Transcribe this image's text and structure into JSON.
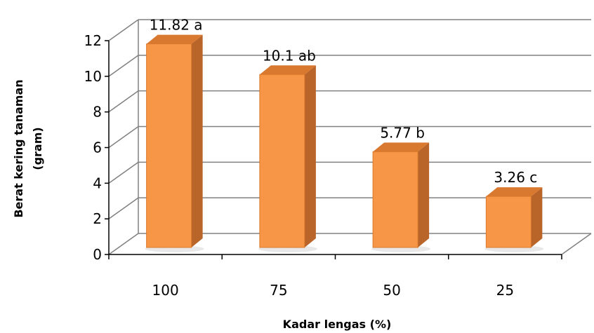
{
  "chart_data": {
    "type": "bar",
    "categories": [
      "100",
      "75",
      "50",
      "25"
    ],
    "values": [
      11.82,
      10.1,
      5.77,
      3.26
    ],
    "data_labels": [
      "11.82 a",
      "10.1 ab",
      "5.77 b",
      "3.26 c"
    ],
    "xlabel": "Kadar lengas (%)",
    "ylabel_lines": [
      "Berat kering tanaman",
      "(gram)"
    ],
    "ylim": [
      0,
      12
    ],
    "yticks": [
      "0",
      "2",
      "4",
      "6",
      "8",
      "10",
      "12"
    ],
    "grid": true,
    "style": "3d-column",
    "colors": {
      "bar_front": "#F79646",
      "bar_side": "#B9652A",
      "bar_top": "#D9782F",
      "gridline": "#808080"
    }
  }
}
